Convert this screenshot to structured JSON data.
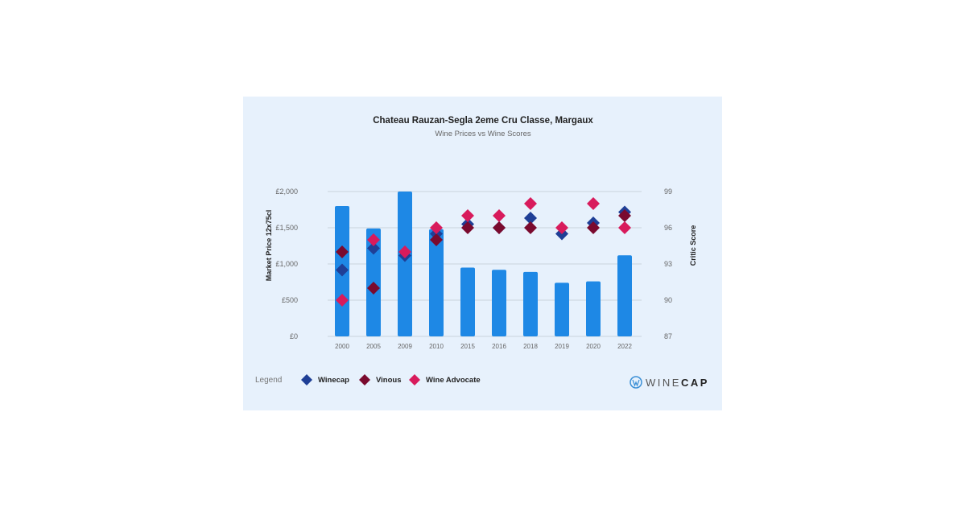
{
  "chart_data": {
    "type": "bar+scatter",
    "title": "Chateau Rauzan-Segla 2eme Cru Classe, Margaux",
    "subtitle": "Wine Prices vs Wine Scores",
    "ylabel": "Market Price 12x75cl",
    "y2label": "Critic Score",
    "ylim": [
      0,
      2000
    ],
    "y2lim": [
      87,
      99
    ],
    "yticks": [
      "£0",
      "£500",
      "£1,000",
      "£1,500",
      "£2,000"
    ],
    "yticks_values": [
      0,
      500,
      1000,
      1500,
      2000
    ],
    "y2ticks": [
      "87",
      "90",
      "93",
      "96",
      "99"
    ],
    "y2ticks_values": [
      87,
      90,
      93,
      96,
      99
    ],
    "grid": true,
    "categories": [
      "2000",
      "2005",
      "2009",
      "2010",
      "2015",
      "2016",
      "2018",
      "2019",
      "2020",
      "2022"
    ],
    "bars": {
      "name": "Market Price",
      "color": "#1e88e5",
      "values": [
        1800,
        1490,
        2000,
        1480,
        950,
        920,
        890,
        740,
        760,
        1120
      ]
    },
    "series": [
      {
        "name": "Winecap",
        "color": "#1f3f96",
        "values": [
          92.5,
          94.3,
          93.7,
          95.5,
          96.3,
          96,
          96.8,
          95.5,
          96.4,
          97.3
        ]
      },
      {
        "name": "Vinous",
        "color": "#7a0a2e",
        "values": [
          94,
          91,
          null,
          95,
          96,
          96,
          96,
          null,
          96,
          97
        ]
      },
      {
        "name": "Wine Advocate",
        "color": "#d81b5c",
        "values": [
          90,
          95,
          94,
          96,
          97,
          97,
          98,
          96,
          98,
          96
        ]
      }
    ],
    "legend_title": "Legend",
    "legend_position": "bottom-left"
  },
  "brand": {
    "logo_light": "WINE",
    "logo_bold": "CAP"
  }
}
